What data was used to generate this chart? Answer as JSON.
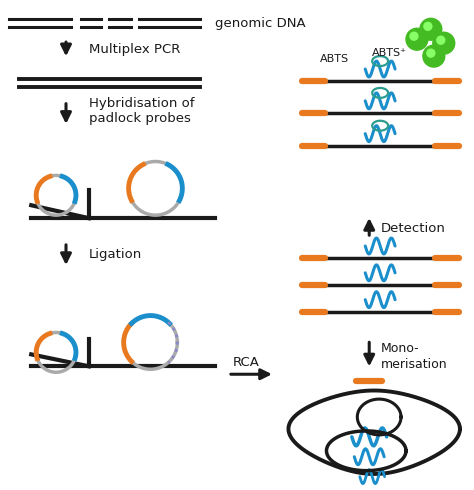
{
  "bg_color": "#ffffff",
  "black": "#1a1a1a",
  "orange": "#e8791e",
  "blue": "#1a8fcc",
  "teal": "#2a9d8f",
  "gray": "#aaaaaa",
  "green": "#44bb22",
  "dark_green": "#228B22",
  "title": "genomic DNA",
  "label_multiplex": "Multiplex PCR",
  "label_hybrid": "Hybridisation of\npadlock probes",
  "label_ligation": "Ligation",
  "label_rca": "RCA",
  "label_detection": "Detection",
  "label_monomers": "Mono-\nmerisation",
  "label_abts": "ABTS",
  "label_abts_plus": "ABTS⁺",
  "figw": 4.74,
  "figh": 4.9,
  "dpi": 100
}
